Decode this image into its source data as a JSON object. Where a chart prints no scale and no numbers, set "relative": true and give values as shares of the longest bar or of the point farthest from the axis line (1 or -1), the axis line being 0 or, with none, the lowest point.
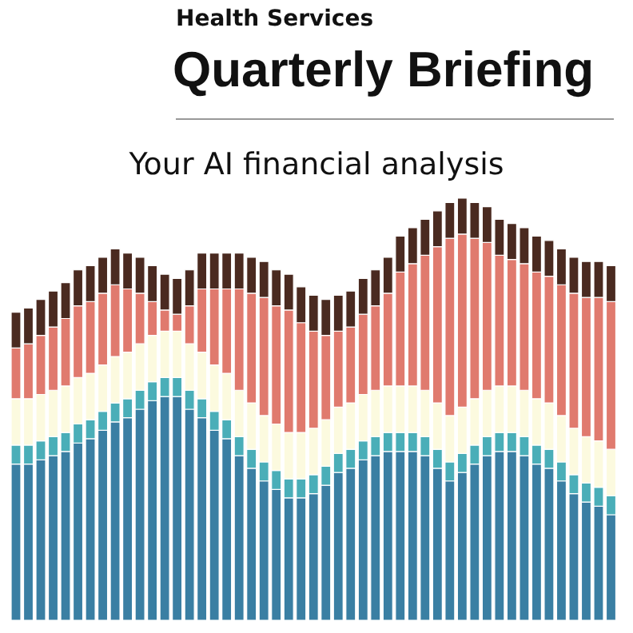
{
  "chart_data": {
    "type": "bar",
    "title": "Quarterly Briefing",
    "subtitle": "Health Services",
    "annotations": [
      "Your AI financial analysis"
    ],
    "relative": true,
    "stacked": true,
    "categories": [
      null,
      null,
      null,
      null,
      null,
      null,
      null,
      null,
      null,
      null,
      null,
      null,
      null,
      null,
      null,
      null,
      null,
      null,
      null,
      null,
      null,
      null,
      null,
      null,
      null,
      null,
      null,
      null,
      null,
      null,
      null,
      null,
      null,
      null,
      null,
      null,
      null,
      null,
      null,
      null,
      null,
      null,
      null,
      null,
      null,
      null,
      null,
      null,
      null
    ],
    "series": [
      {
        "color": "#3a7fa3",
        "values": [
          0.37,
          0.37,
          0.38,
          0.39,
          0.4,
          0.42,
          0.43,
          0.45,
          0.47,
          0.48,
          0.5,
          0.52,
          0.53,
          0.53,
          0.5,
          0.48,
          0.45,
          0.43,
          0.39,
          0.36,
          0.33,
          0.31,
          0.29,
          0.29,
          0.3,
          0.32,
          0.35,
          0.36,
          0.38,
          0.39,
          0.4,
          0.4,
          0.4,
          0.39,
          0.36,
          0.33,
          0.35,
          0.37,
          0.39,
          0.4,
          0.4,
          0.39,
          0.37,
          0.36,
          0.33,
          0.3,
          0.28,
          0.27,
          0.25
        ]
      },
      {
        "color": "#4aaeb8",
        "values": [
          0.045,
          0.045,
          0.045,
          0.045,
          0.045,
          0.045,
          0.045,
          0.045,
          0.045,
          0.045,
          0.045,
          0.045,
          0.045,
          0.045,
          0.045,
          0.045,
          0.045,
          0.045,
          0.045,
          0.045,
          0.045,
          0.045,
          0.045,
          0.045,
          0.045,
          0.045,
          0.045,
          0.045,
          0.045,
          0.045,
          0.045,
          0.045,
          0.045,
          0.045,
          0.045,
          0.045,
          0.045,
          0.045,
          0.045,
          0.045,
          0.045,
          0.045,
          0.045,
          0.045,
          0.045,
          0.045,
          0.045,
          0.045,
          0.045
        ]
      },
      {
        "color": "#fcfadf",
        "values": [
          0.11,
          0.11,
          0.11,
          0.11,
          0.11,
          0.11,
          0.11,
          0.11,
          0.11,
          0.11,
          0.11,
          0.11,
          0.11,
          0.11,
          0.11,
          0.11,
          0.11,
          0.11,
          0.11,
          0.11,
          0.11,
          0.11,
          0.11,
          0.11,
          0.11,
          0.11,
          0.11,
          0.11,
          0.11,
          0.11,
          0.11,
          0.11,
          0.11,
          0.11,
          0.11,
          0.11,
          0.11,
          0.11,
          0.11,
          0.11,
          0.11,
          0.11,
          0.11,
          0.11,
          0.11,
          0.11,
          0.11,
          0.11,
          0.11
        ]
      },
      {
        "color": "#e07a6e",
        "values": [
          0.12,
          0.13,
          0.14,
          0.15,
          0.16,
          0.17,
          0.17,
          0.17,
          0.17,
          0.15,
          0.12,
          0.08,
          0.05,
          0.04,
          0.09,
          0.15,
          0.18,
          0.2,
          0.24,
          0.26,
          0.28,
          0.28,
          0.29,
          0.26,
          0.23,
          0.2,
          0.18,
          0.18,
          0.19,
          0.2,
          0.22,
          0.27,
          0.29,
          0.32,
          0.37,
          0.42,
          0.41,
          0.38,
          0.35,
          0.31,
          0.3,
          0.3,
          0.3,
          0.3,
          0.31,
          0.32,
          0.33,
          0.34,
          0.35
        ]
      },
      {
        "color": "#4a2a20",
        "values": [
          0.085,
          0.085,
          0.085,
          0.085,
          0.085,
          0.085,
          0.085,
          0.085,
          0.085,
          0.085,
          0.085,
          0.085,
          0.085,
          0.085,
          0.085,
          0.085,
          0.085,
          0.085,
          0.085,
          0.085,
          0.085,
          0.085,
          0.085,
          0.085,
          0.085,
          0.085,
          0.085,
          0.085,
          0.085,
          0.085,
          0.085,
          0.085,
          0.085,
          0.085,
          0.085,
          0.085,
          0.085,
          0.085,
          0.085,
          0.085,
          0.085,
          0.085,
          0.085,
          0.085,
          0.085,
          0.085,
          0.085,
          0.085,
          0.085
        ]
      }
    ]
  }
}
